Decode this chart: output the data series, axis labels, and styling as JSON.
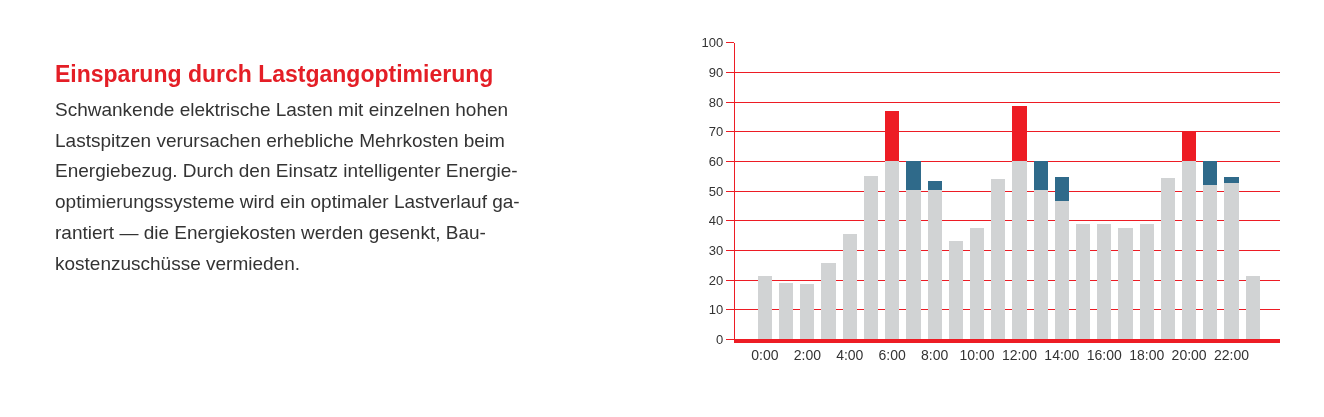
{
  "chart_data": {
    "type": "bar",
    "stacked": true,
    "title": "Einsparung durch Lastgangoptimierung",
    "subtitle": "Schwankende elektrische Lasten mit einzelnen hohen\nLastspitzen verursachen erhebliche Mehrkosten beim\nEnergiebezug. Durch den Einsatz intelligenter Energie-\noptimierungssysteme wird ein optimaler Lastverlauf ga-\nrantiert — die Energiekosten werden gesenkt, Bau-\nkostenzuschüsse vermieden.",
    "categories": [
      "0:00",
      null,
      "2:00",
      null,
      "4:00",
      null,
      "6:00",
      null,
      "8:00",
      null,
      "10:00",
      null,
      "12:00",
      null,
      "14:00",
      null,
      "16:00",
      null,
      "18:00",
      null,
      "20:00",
      null,
      "22:00",
      null
    ],
    "series": [
      {
        "color": "#d1d3d4",
        "values": [
          21.3,
          19.0,
          18.7,
          25.9,
          35.4,
          55.1,
          60,
          50.5,
          50.5,
          33.1,
          37.4,
          54.1,
          60,
          50.5,
          46.6,
          39.0,
          39.0,
          37.4,
          39.0,
          54.4,
          60,
          52.1,
          52.8,
          21.3
        ]
      },
      {
        "color": "#ed1c24",
        "values": [
          null,
          null,
          null,
          null,
          null,
          null,
          17.0,
          null,
          null,
          null,
          null,
          null,
          18.7,
          null,
          null,
          null,
          null,
          null,
          null,
          null,
          10.2,
          null,
          null,
          null
        ]
      },
      {
        "color": "#2f6a8a",
        "values": [
          null,
          null,
          null,
          null,
          null,
          null,
          null,
          9.8,
          2.9,
          null,
          null,
          null,
          null,
          9.8,
          8.2,
          null,
          null,
          null,
          null,
          null,
          null,
          8.2,
          2.0,
          null
        ]
      }
    ],
    "ylim": [
      0,
      100
    ],
    "yticks": [
      0,
      10,
      20,
      30,
      40,
      50,
      60,
      70,
      80,
      90,
      100
    ],
    "grid": "y"
  }
}
